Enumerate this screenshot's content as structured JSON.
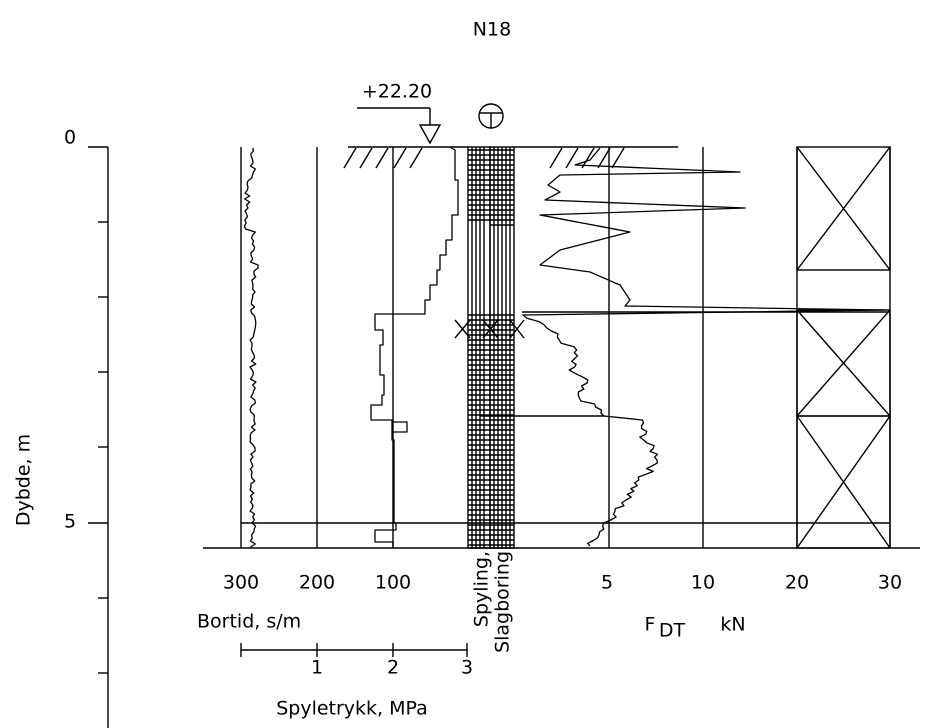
{
  "title": "N18",
  "elevation": "+22.20",
  "depth_axis": {
    "label": "Dybde, m",
    "ticks": [
      "0",
      "5"
    ]
  },
  "bortid": {
    "ticks": [
      "300",
      "200",
      "100"
    ],
    "label": "Bortid, s/m"
  },
  "spyletrykk": {
    "ticks": [
      "1",
      "2",
      "3"
    ],
    "label": "Spyletrykk, MPa"
  },
  "columns": [
    "Spyling,",
    "Slagboring"
  ],
  "force": {
    "ticks": [
      "5",
      "10",
      "20",
      "30"
    ],
    "label_main": "F",
    "label_sub": "DT",
    "unit": "kN"
  }
}
